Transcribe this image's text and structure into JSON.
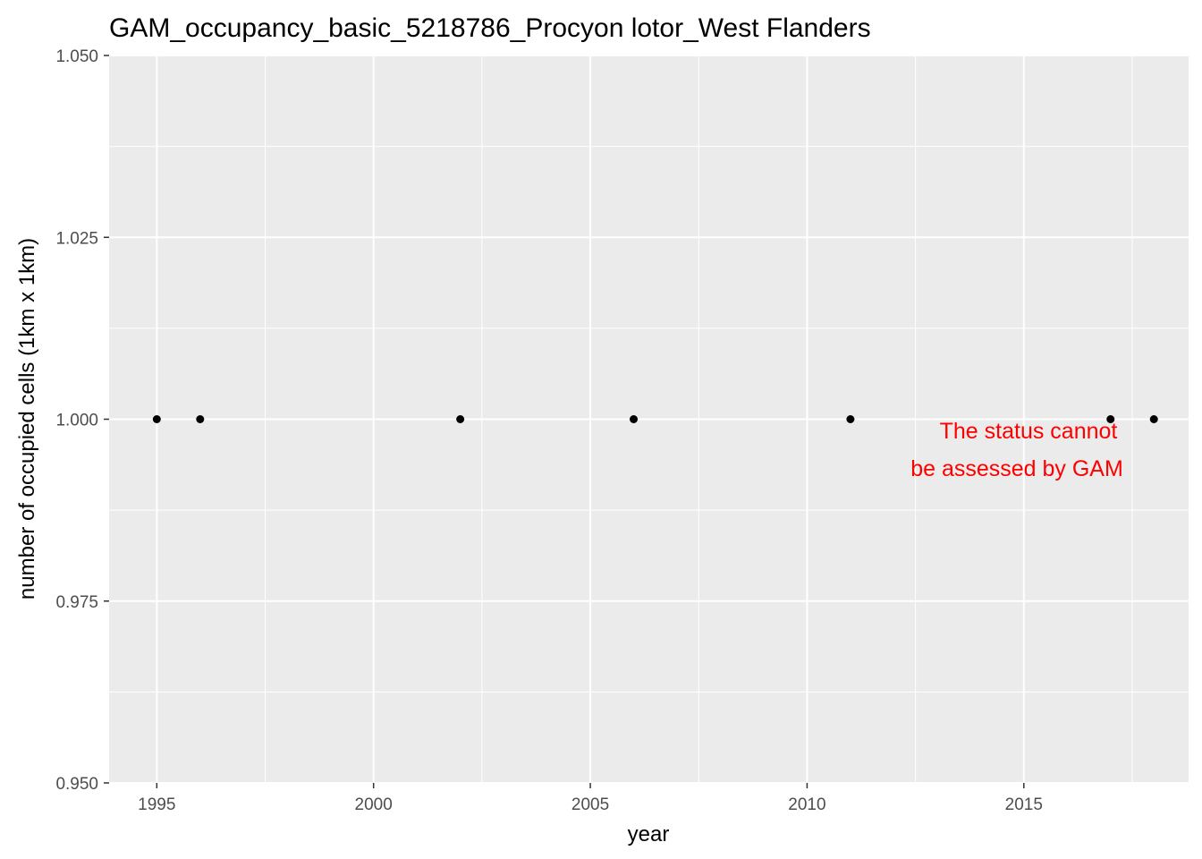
{
  "chart_data": {
    "type": "scatter",
    "title": "GAM_occupancy_basic_5218786_Procyon lotor_West Flanders",
    "xlabel": "year",
    "ylabel": "number of occupied cells (1km x 1km)",
    "x": [
      1995,
      1996,
      2002,
      2006,
      2011,
      2017,
      2018
    ],
    "y": [
      1,
      1,
      1,
      1,
      1,
      1,
      1
    ],
    "xlim": [
      1993.9,
      2018.8
    ],
    "ylim": [
      0.95,
      1.05
    ],
    "x_ticks": [
      1995,
      2000,
      2005,
      2010,
      2015
    ],
    "x_tick_labels": [
      "1995",
      "2000",
      "2005",
      "2010",
      "2015"
    ],
    "y_ticks": [
      0.95,
      0.975,
      1.0,
      1.025,
      1.05
    ],
    "y_tick_labels": [
      "0.950",
      "0.975",
      "1.000",
      "1.025",
      "1.050"
    ],
    "grid": true,
    "annotation": {
      "lines": [
        "The status cannot",
        "be assessed by GAM"
      ],
      "color": "#ff0000"
    },
    "colors": {
      "panel_background": "#ebebeb",
      "grid": "#ffffff",
      "points": "#000000"
    }
  }
}
